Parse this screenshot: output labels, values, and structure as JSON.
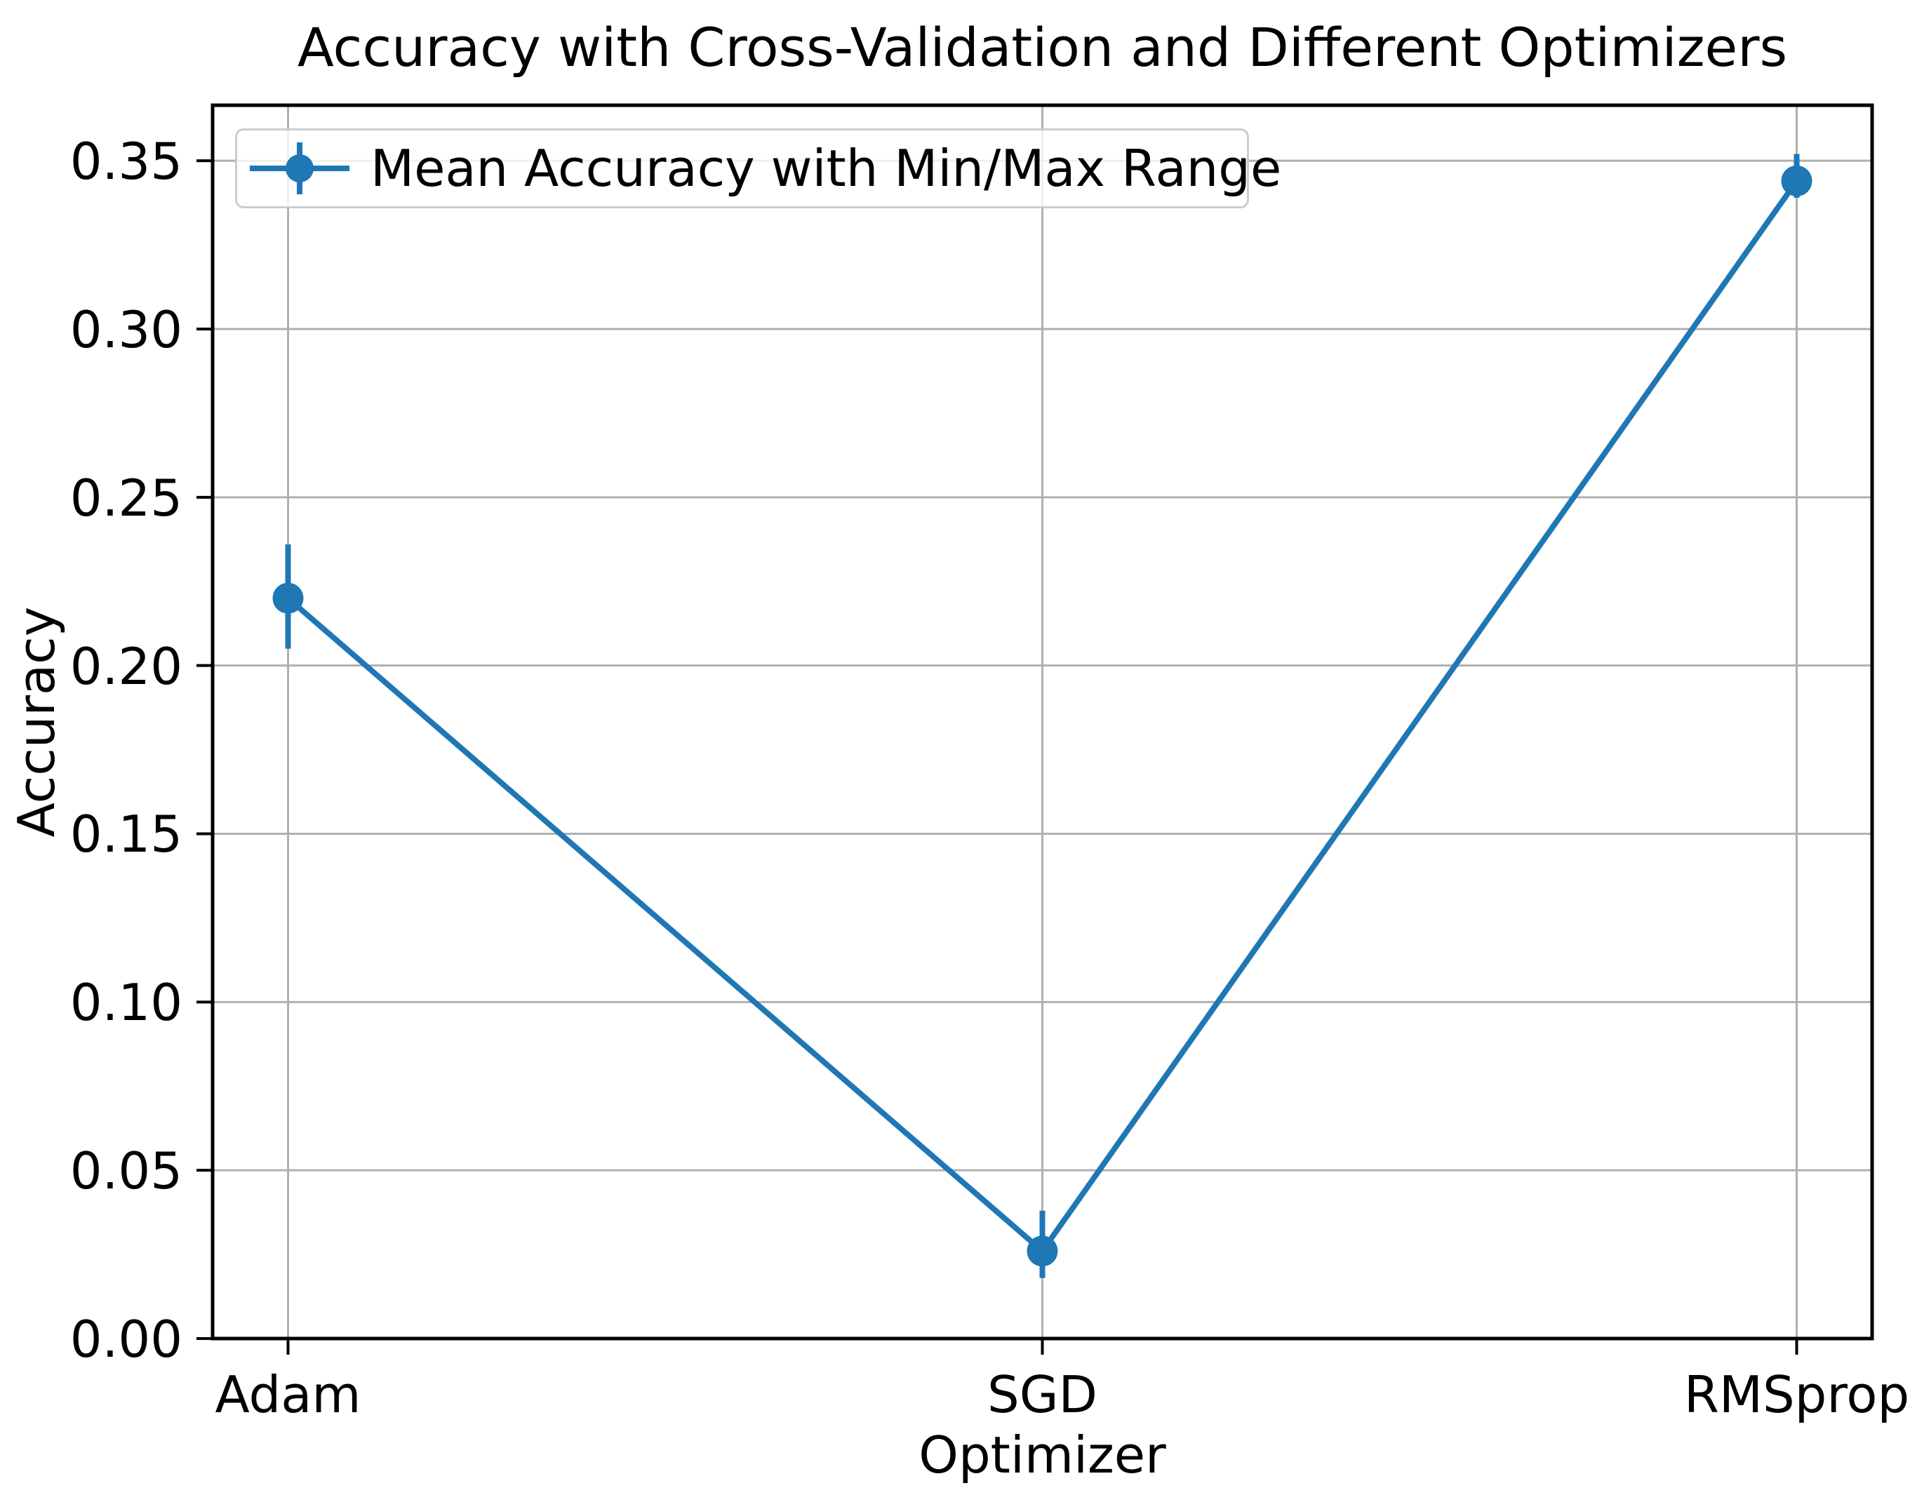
{
  "figure": {
    "background": "#ffffff"
  },
  "chart_data": {
    "type": "line",
    "title": "Accuracy with Cross-Validation and Different Optimizers",
    "xlabel": "Optimizer",
    "ylabel": "Accuracy",
    "categories": [
      "Adam",
      "SGD",
      "RMSprop"
    ],
    "series": [
      {
        "name": "Mean Accuracy with Min/Max Range",
        "values": [
          0.22,
          0.026,
          0.344
        ],
        "err_min": [
          0.205,
          0.018,
          0.339
        ],
        "err_max": [
          0.236,
          0.038,
          0.352
        ],
        "color": "#1f77b4",
        "marker": "o"
      }
    ],
    "ytick_labels": [
      "0.00",
      "0.05",
      "0.10",
      "0.15",
      "0.20",
      "0.25",
      "0.30",
      "0.35"
    ],
    "ytick_values": [
      0.0,
      0.05,
      0.1,
      0.15,
      0.2,
      0.25,
      0.3,
      0.35
    ],
    "ylim": [
      0.0,
      0.3665
    ],
    "xlim": [
      -0.1,
      2.1
    ],
    "grid": true,
    "legend": {
      "label": "Mean Accuracy with Min/Max Range",
      "position": "upper left"
    },
    "colors": {
      "line": "#1f77b4",
      "grid": "#b0b0b0",
      "spine": "#000000",
      "text": "#000000"
    }
  }
}
